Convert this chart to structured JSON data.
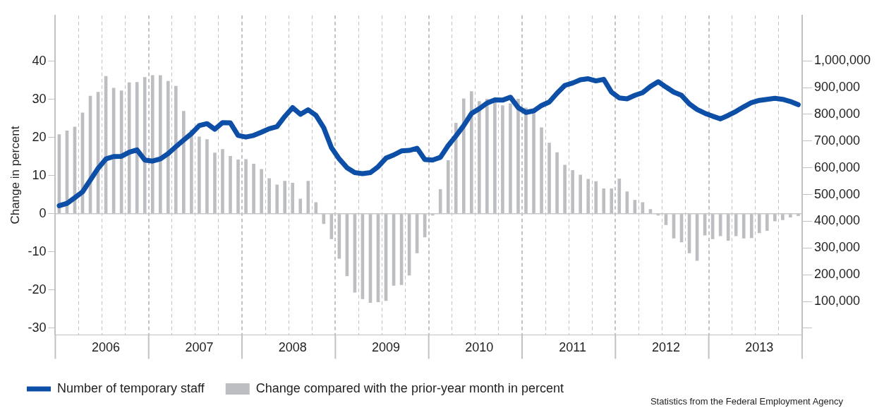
{
  "chart_data": {
    "type": "bar",
    "ylabel": "Change in percent",
    "categories": [
      null,
      null,
      null,
      null,
      null,
      null,
      "2006",
      null,
      null,
      null,
      null,
      null,
      null,
      null,
      null,
      null,
      null,
      null,
      "2007",
      null,
      null,
      null,
      null,
      null,
      null,
      null,
      null,
      null,
      null,
      null,
      "2008",
      null,
      null,
      null,
      null,
      null,
      null,
      null,
      null,
      null,
      null,
      null,
      "2009",
      null,
      null,
      null,
      null,
      null,
      null,
      null,
      null,
      null,
      null,
      null,
      "2010",
      null,
      null,
      null,
      null,
      null,
      null,
      null,
      null,
      null,
      null,
      null,
      "2011",
      null,
      null,
      null,
      null,
      null,
      null,
      null,
      null,
      null,
      null,
      null,
      "2012",
      null,
      null,
      null,
      null,
      null,
      null,
      null,
      null,
      null,
      null,
      null,
      "2013",
      null,
      null,
      null,
      null,
      null
    ],
    "series": [
      {
        "name": "Number of temporary staff",
        "type": "line",
        "axis": "y2",
        "color": "#0d4ea6",
        "values": [
          458000,
          467000,
          488000,
          510000,
          554000,
          598000,
          633000,
          642000,
          643000,
          658000,
          667000,
          629000,
          625000,
          633000,
          653000,
          679000,
          704000,
          728000,
          758000,
          765000,
          744000,
          769000,
          768000,
          721000,
          715000,
          721000,
          733000,
          746000,
          754000,
          792000,
          825000,
          800000,
          817000,
          796000,
          750000,
          675000,
          633000,
          600000,
          582000,
          578000,
          582000,
          604000,
          636000,
          648000,
          663000,
          665000,
          673000,
          631000,
          629000,
          639000,
          683000,
          719000,
          758000,
          803000,
          821000,
          842000,
          854000,
          853000,
          864000,
          825000,
          807000,
          813000,
          833000,
          846000,
          879000,
          908000,
          917000,
          929000,
          933000,
          925000,
          931000,
          883000,
          861000,
          858000,
          871000,
          881000,
          904000,
          922000,
          902000,
          883000,
          871000,
          839000,
          818000,
          804000,
          793000,
          783000,
          796000,
          811000,
          828000,
          844000,
          852000,
          856000,
          860000,
          856000,
          848000,
          836000
        ]
      },
      {
        "name": "Change compared with the prior-year month in percent",
        "color": "#bdbec2",
        "values": [
          20.8,
          21.8,
          22.8,
          26.5,
          30.9,
          31.9,
          36.1,
          33.0,
          32.3,
          34.4,
          34.5,
          35.8,
          36.3,
          36.3,
          34.8,
          33.5,
          26.9,
          22,
          20.2,
          19.5,
          16.0,
          16.9,
          15.1,
          14.2,
          14.3,
          13.1,
          11.7,
          9.3,
          7.6,
          8.6,
          8.1,
          3.9,
          8.6,
          3.0,
          -2.7,
          -6.7,
          -11.8,
          -16.4,
          -20.7,
          -22.4,
          -23.4,
          -23.2,
          -22.9,
          -18.9,
          -18.7,
          -16.2,
          -10.4,
          -6.2,
          -0.5,
          6.4,
          14,
          23.8,
          30.2,
          32.1,
          29.5,
          30.1,
          29.2,
          28.4,
          28.9,
          30.1,
          27.8,
          26.3,
          22.6,
          18.6,
          16.1,
          12.8,
          11.4,
          10.2,
          9.1,
          8.5,
          6.6,
          6.6,
          9.2,
          5.8,
          3.6,
          3.0,
          1.2,
          -0.5,
          -3.0,
          -6.5,
          -7.5,
          -10.4,
          -12.4,
          -5.7,
          -6.7,
          -5.9,
          -7.1,
          -5.9,
          -6.5,
          -6.4,
          -5.1,
          -4.5,
          -2.0,
          -1.7,
          -1.0,
          -0.6
        ]
      }
    ],
    "ylim": [
      -31.8,
      52
    ],
    "yticks": [
      -30,
      -20,
      -10,
      0,
      10,
      20,
      30,
      40
    ],
    "y2lim": [
      -25000,
      1170000
    ],
    "y2ticks": [
      {
        "value": 0,
        "label": null
      },
      {
        "value": 100000,
        "label": "100,000"
      },
      {
        "value": 200000,
        "label": "200,000"
      },
      {
        "value": 300000,
        "label": "300,000"
      },
      {
        "value": 400000,
        "label": "400,000"
      },
      {
        "value": 500000,
        "label": "500,000"
      },
      {
        "value": 600000,
        "label": "600,000"
      },
      {
        "value": 700000,
        "label": "700,000"
      },
      {
        "value": 800000,
        "label": "800,000"
      },
      {
        "value": 900000,
        "label": "900,000"
      },
      {
        "value": 1000000,
        "label": "1,000,000"
      }
    ],
    "ref_lines": [
      {
        "axis": "y",
        "value": 0,
        "color": "#c8c8cc"
      }
    ],
    "grid": "x",
    "legend": "bottom",
    "marker": "none",
    "annotations": [
      "Statistics from the Federal Employment Agency"
    ]
  }
}
